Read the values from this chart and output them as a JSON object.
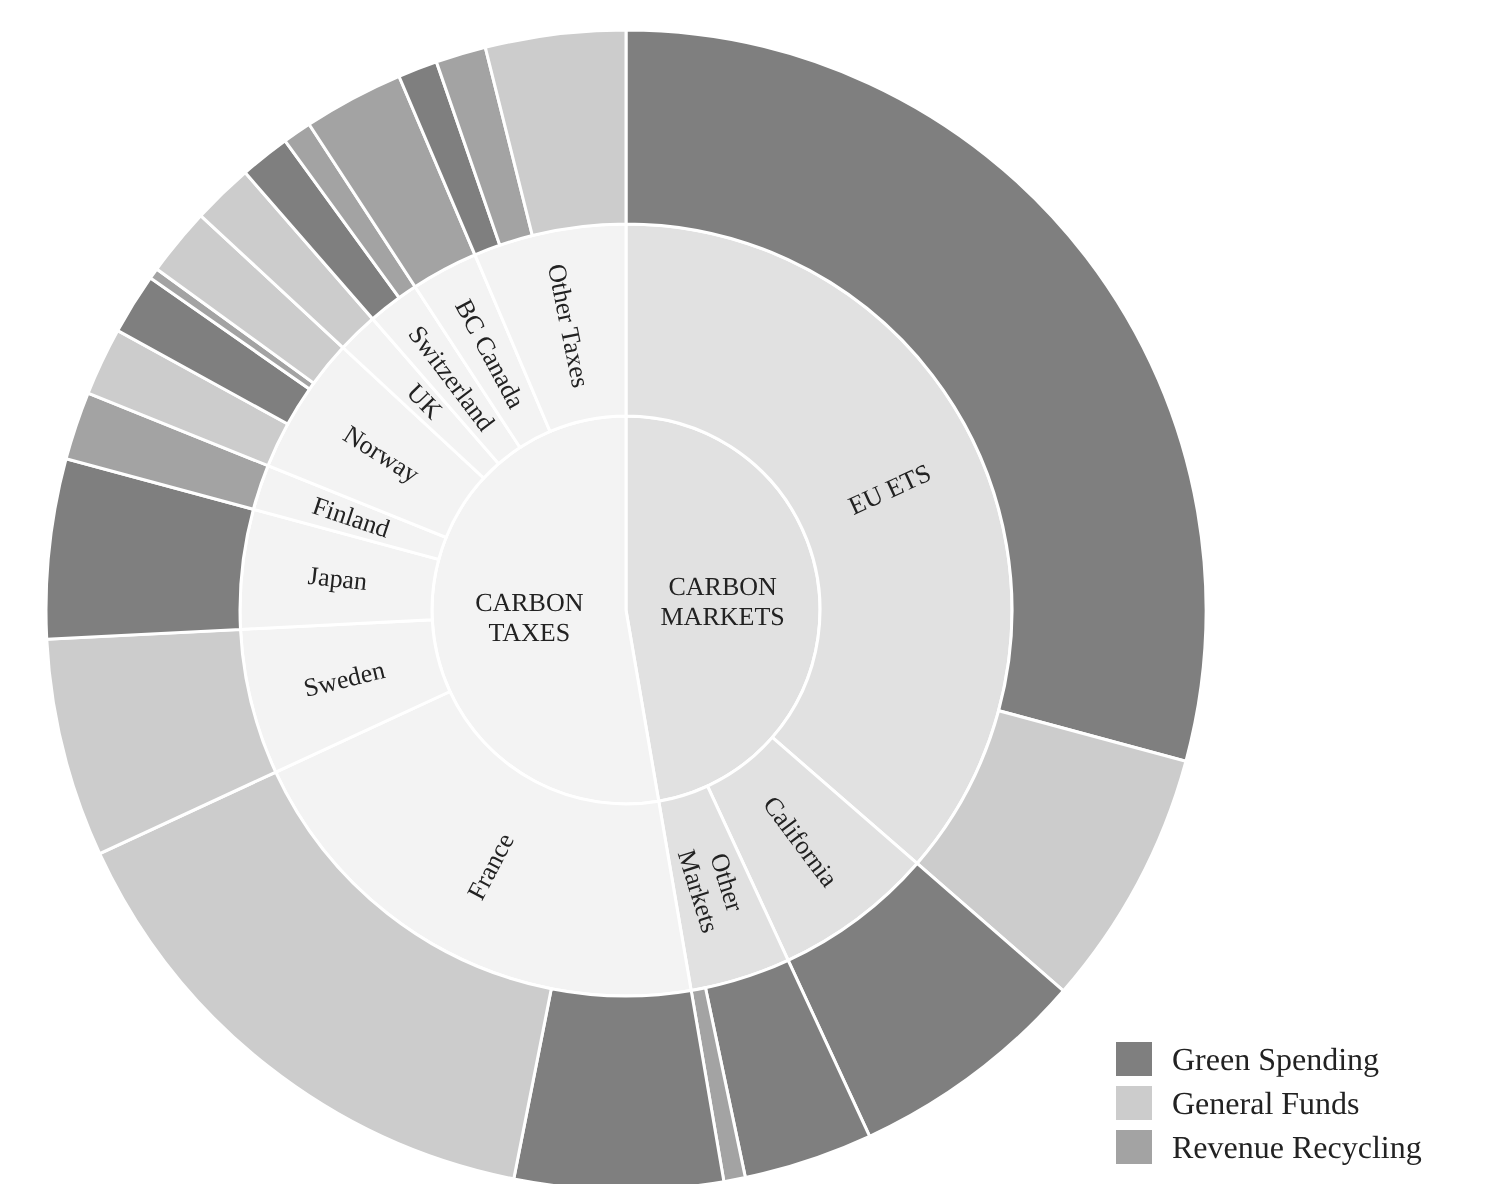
{
  "chart_data": [
    {
      "type": "pie",
      "categories": [
        "CARBON\nMARKETS",
        "CARBON\nTAXES"
      ],
      "values": [
        47.3,
        52.7
      ],
      "colors": [
        "#e1e1e1",
        "#f3f3f3"
      ]
    },
    {
      "type": "donut",
      "categories": [
        "EU ETS",
        "California",
        "Other\nMarkets",
        "France",
        "Sweden",
        "Japan",
        "Finland",
        "Norway",
        "UK",
        "Switzerland",
        "BC Canada",
        "Other Taxes"
      ],
      "values": [
        36.4,
        6.7,
        4.2,
        20.8,
        6.1,
        5.0,
        1.9,
        5.8,
        1.7,
        2.2,
        2.8,
        6.4
      ],
      "colors": [
        "#e1e1e1",
        "#e1e1e1",
        "#e1e1e1",
        "#f3f3f3",
        "#f3f3f3",
        "#f3f3f3",
        "#f3f3f3",
        "#f3f3f3",
        "#f3f3f3",
        "#f3f3f3",
        "#f3f3f3",
        "#f3f3f3"
      ]
    },
    {
      "type": "donut",
      "legend": "bottom right",
      "categories": [
        "Green Spending",
        "General Funds",
        null,
        null,
        "Revenue Recycling",
        null,
        null,
        null,
        null,
        null,
        null,
        null,
        null,
        null,
        null,
        null,
        null,
        null,
        null,
        null,
        null
      ],
      "values": [
        29.2,
        7.2,
        6.7,
        3.6,
        0.6,
        5.8,
        15.0,
        6.1,
        5.0,
        1.9,
        1.9,
        1.7,
        0.3,
        1.9,
        1.7,
        1.4,
        0.8,
        2.8,
        1.1,
        1.4,
        3.9
      ],
      "colors": [
        "#7f7f7f",
        "#cccccc",
        "#7f7f7f",
        "#7f7f7f",
        "#a3a3a3",
        "#7f7f7f",
        "#cccccc",
        "#cccccc",
        "#7f7f7f",
        "#a3a3a3",
        "#cccccc",
        "#7f7f7f",
        "#a3a3a3",
        "#cccccc",
        "#cccccc",
        "#7f7f7f",
        "#a3a3a3",
        "#a3a3a3",
        "#7f7f7f",
        "#a3a3a3",
        "#cccccc"
      ]
    }
  ]
}
